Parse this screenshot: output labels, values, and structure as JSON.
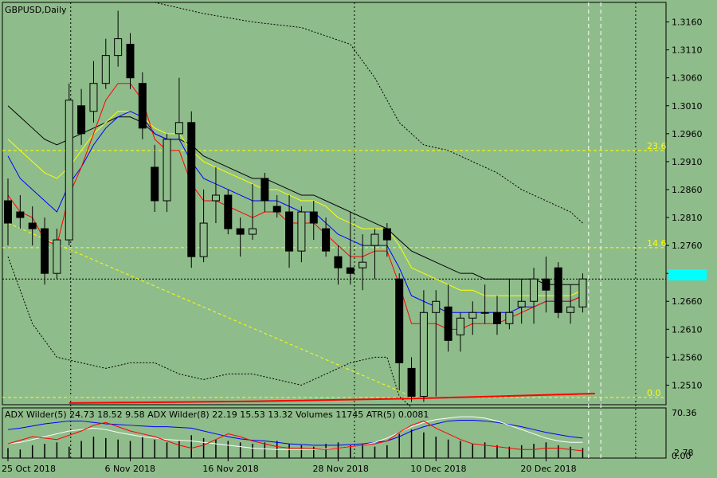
{
  "symbol_label": "GBPUSD,Daily",
  "indicator_label": "ADX Wilder(5) 24.73 18.52 9.58 ADX Wilder(8) 22.19 15.53 13.32 Volumes 11745 ATR(5) 0.0081",
  "current_price": "1.2700",
  "colors": {
    "background": "#8fbc8b",
    "bull_body": "#8fbc8b",
    "bear_body": "#000000",
    "ma_red": "#ff0000",
    "ma_blue": "#0000ff",
    "ma_yellow": "#ffff00",
    "ma_black": "#000000",
    "fib_line": "#ffff00",
    "price_tag": "#00ffff"
  },
  "chart_data": {
    "type": "candlestick",
    "price_axis": {
      "min": 1.2475,
      "max": 1.3195,
      "ticks": [
        "1.3160",
        "1.3110",
        "1.3060",
        "1.3010",
        "1.2960",
        "1.2910",
        "1.2860",
        "1.2810",
        "1.2760",
        "1.2710",
        "1.2660",
        "1.2610",
        "1.2560",
        "1.2510"
      ]
    },
    "time_labels": [
      {
        "i": 0,
        "label": "25 Oct 2018"
      },
      {
        "i": 10,
        "label": "6 Nov 2018"
      },
      {
        "i": 18,
        "label": "16 Nov 2018"
      },
      {
        "i": 27,
        "label": "28 Nov 2018"
      },
      {
        "i": 35,
        "label": "10 Dec 2018"
      },
      {
        "i": 44,
        "label": "20 Dec 2018"
      }
    ],
    "fib_levels": [
      {
        "label": "23.6",
        "price": 1.293
      },
      {
        "label": "14.6",
        "price": 1.2756
      },
      {
        "label": "0.0",
        "price": 1.2488
      }
    ],
    "vertical_marks": [
      5,
      29,
      48,
      49
    ],
    "candles": [
      {
        "o": 1.284,
        "h": 1.288,
        "l": 1.276,
        "c": 1.28
      },
      {
        "o": 1.282,
        "h": 1.285,
        "l": 1.279,
        "c": 1.281
      },
      {
        "o": 1.28,
        "h": 1.283,
        "l": 1.276,
        "c": 1.279
      },
      {
        "o": 1.279,
        "h": 1.281,
        "l": 1.269,
        "c": 1.271
      },
      {
        "o": 1.271,
        "h": 1.279,
        "l": 1.27,
        "c": 1.277
      },
      {
        "o": 1.277,
        "h": 1.305,
        "l": 1.276,
        "c": 1.302
      },
      {
        "o": 1.301,
        "h": 1.304,
        "l": 1.294,
        "c": 1.296
      },
      {
        "o": 1.3,
        "h": 1.309,
        "l": 1.298,
        "c": 1.305
      },
      {
        "o": 1.305,
        "h": 1.313,
        "l": 1.304,
        "c": 1.31
      },
      {
        "o": 1.31,
        "h": 1.318,
        "l": 1.308,
        "c": 1.313
      },
      {
        "o": 1.312,
        "h": 1.314,
        "l": 1.304,
        "c": 1.306
      },
      {
        "o": 1.305,
        "h": 1.307,
        "l": 1.295,
        "c": 1.297
      },
      {
        "o": 1.29,
        "h": 1.294,
        "l": 1.282,
        "c": 1.284
      },
      {
        "o": 1.284,
        "h": 1.296,
        "l": 1.282,
        "c": 1.295
      },
      {
        "o": 1.296,
        "h": 1.306,
        "l": 1.295,
        "c": 1.298
      },
      {
        "o": 1.298,
        "h": 1.3,
        "l": 1.272,
        "c": 1.274
      },
      {
        "o": 1.274,
        "h": 1.286,
        "l": 1.273,
        "c": 1.28
      },
      {
        "o": 1.284,
        "h": 1.29,
        "l": 1.28,
        "c": 1.285
      },
      {
        "o": 1.285,
        "h": 1.286,
        "l": 1.278,
        "c": 1.279
      },
      {
        "o": 1.279,
        "h": 1.281,
        "l": 1.274,
        "c": 1.278
      },
      {
        "o": 1.278,
        "h": 1.287,
        "l": 1.277,
        "c": 1.279
      },
      {
        "o": 1.288,
        "h": 1.289,
        "l": 1.282,
        "c": 1.284
      },
      {
        "o": 1.283,
        "h": 1.285,
        "l": 1.281,
        "c": 1.282
      },
      {
        "o": 1.282,
        "h": 1.285,
        "l": 1.272,
        "c": 1.275
      },
      {
        "o": 1.275,
        "h": 1.283,
        "l": 1.273,
        "c": 1.282
      },
      {
        "o": 1.282,
        "h": 1.284,
        "l": 1.277,
        "c": 1.28
      },
      {
        "o": 1.279,
        "h": 1.281,
        "l": 1.274,
        "c": 1.275
      },
      {
        "o": 1.274,
        "h": 1.276,
        "l": 1.269,
        "c": 1.272
      },
      {
        "o": 1.272,
        "h": 1.282,
        "l": 1.269,
        "c": 1.271
      },
      {
        "o": 1.272,
        "h": 1.278,
        "l": 1.268,
        "c": 1.273
      },
      {
        "o": 1.276,
        "h": 1.279,
        "l": 1.27,
        "c": 1.278
      },
      {
        "o": 1.279,
        "h": 1.28,
        "l": 1.274,
        "c": 1.277
      },
      {
        "o": 1.27,
        "h": 1.271,
        "l": 1.25,
        "c": 1.255
      },
      {
        "o": 1.254,
        "h": 1.256,
        "l": 1.248,
        "c": 1.249
      },
      {
        "o": 1.249,
        "h": 1.268,
        "l": 1.248,
        "c": 1.264
      },
      {
        "o": 1.264,
        "h": 1.268,
        "l": 1.249,
        "c": 1.266
      },
      {
        "o": 1.265,
        "h": 1.269,
        "l": 1.257,
        "c": 1.259
      },
      {
        "o": 1.26,
        "h": 1.264,
        "l": 1.257,
        "c": 1.263
      },
      {
        "o": 1.263,
        "h": 1.266,
        "l": 1.26,
        "c": 1.264
      },
      {
        "o": 1.264,
        "h": 1.269,
        "l": 1.262,
        "c": 1.264
      },
      {
        "o": 1.264,
        "h": 1.267,
        "l": 1.26,
        "c": 1.262
      },
      {
        "o": 1.262,
        "h": 1.27,
        "l": 1.261,
        "c": 1.264
      },
      {
        "o": 1.265,
        "h": 1.27,
        "l": 1.262,
        "c": 1.266
      },
      {
        "o": 1.266,
        "h": 1.272,
        "l": 1.262,
        "c": 1.27
      },
      {
        "o": 1.27,
        "h": 1.274,
        "l": 1.264,
        "c": 1.268
      },
      {
        "o": 1.272,
        "h": 1.273,
        "l": 1.263,
        "c": 1.264
      },
      {
        "o": 1.264,
        "h": 1.269,
        "l": 1.262,
        "c": 1.265
      },
      {
        "o": 1.265,
        "h": 1.271,
        "l": 1.264,
        "c": 1.27
      }
    ],
    "ma_red": [
      1.285,
      1.282,
      1.281,
      1.277,
      1.276,
      1.285,
      1.29,
      1.296,
      1.302,
      1.305,
      1.305,
      1.302,
      1.295,
      1.293,
      1.293,
      1.287,
      1.284,
      1.284,
      1.283,
      1.282,
      1.281,
      1.282,
      1.282,
      1.28,
      1.28,
      1.28,
      1.278,
      1.276,
      1.274,
      1.274,
      1.275,
      1.275,
      1.269,
      1.262,
      1.262,
      1.262,
      1.261,
      1.261,
      1.262,
      1.262,
      1.262,
      1.263,
      1.264,
      1.265,
      1.266,
      1.266,
      1.266,
      1.267
    ],
    "ma_blue": [
      1.292,
      1.288,
      1.286,
      1.284,
      1.282,
      1.287,
      1.29,
      1.294,
      1.297,
      1.299,
      1.3,
      1.299,
      1.296,
      1.295,
      1.295,
      1.291,
      1.288,
      1.287,
      1.286,
      1.285,
      1.284,
      1.284,
      1.284,
      1.283,
      1.282,
      1.282,
      1.28,
      1.278,
      1.277,
      1.276,
      1.276,
      1.276,
      1.272,
      1.267,
      1.266,
      1.265,
      1.264,
      1.264,
      1.264,
      1.264,
      1.264,
      1.264,
      1.265,
      1.265,
      1.266,
      1.266,
      1.266,
      1.267
    ],
    "ma_yellow": [
      1.295,
      1.293,
      1.291,
      1.289,
      1.288,
      1.29,
      1.293,
      1.296,
      1.298,
      1.3,
      1.3,
      1.299,
      1.297,
      1.296,
      1.296,
      1.293,
      1.291,
      1.29,
      1.289,
      1.288,
      1.287,
      1.286,
      1.286,
      1.285,
      1.284,
      1.284,
      1.283,
      1.281,
      1.28,
      1.279,
      1.279,
      1.279,
      1.276,
      1.272,
      1.271,
      1.27,
      1.269,
      1.268,
      1.268,
      1.267,
      1.267,
      1.267,
      1.267,
      1.267,
      1.267,
      1.267,
      1.267,
      1.268
    ],
    "ma_black": [
      1.301,
      1.299,
      1.297,
      1.295,
      1.294,
      1.295,
      1.296,
      1.297,
      1.298,
      1.299,
      1.299,
      1.298,
      1.296,
      1.295,
      1.295,
      1.294,
      1.292,
      1.291,
      1.29,
      1.289,
      1.288,
      1.288,
      1.287,
      1.286,
      1.285,
      1.285,
      1.284,
      1.283,
      1.282,
      1.281,
      1.28,
      1.279,
      1.277,
      1.275,
      1.274,
      1.273,
      1.272,
      1.271,
      1.271,
      1.27,
      1.27,
      1.27,
      1.27,
      1.27,
      1.269,
      1.269,
      1.269,
      1.269
    ],
    "band_upper": [
      [
        12,
        1.3195
      ],
      [
        16,
        1.3175
      ],
      [
        20,
        1.316
      ],
      [
        24,
        1.315
      ],
      [
        28,
        1.312
      ],
      [
        30,
        1.306
      ],
      [
        32,
        1.298
      ],
      [
        34,
        1.294
      ],
      [
        36,
        1.293
      ],
      [
        38,
        1.291
      ],
      [
        40,
        1.289
      ],
      [
        42,
        1.286
      ],
      [
        44,
        1.284
      ],
      [
        46,
        1.282
      ],
      [
        47,
        1.28
      ]
    ],
    "band_lower": [
      [
        0,
        1.274
      ],
      [
        2,
        1.262
      ],
      [
        4,
        1.256
      ],
      [
        6,
        1.255
      ],
      [
        8,
        1.254
      ],
      [
        10,
        1.255
      ],
      [
        12,
        1.255
      ],
      [
        14,
        1.253
      ],
      [
        16,
        1.252
      ],
      [
        18,
        1.253
      ],
      [
        20,
        1.253
      ],
      [
        22,
        1.252
      ],
      [
        24,
        1.251
      ],
      [
        26,
        1.253
      ],
      [
        28,
        1.255
      ],
      [
        30,
        1.256
      ],
      [
        31,
        1.256
      ],
      [
        32,
        1.249
      ],
      [
        33,
        1.247
      ]
    ],
    "trend_line": [
      [
        0,
        1.28
      ],
      [
        33,
        1.249
      ]
    ],
    "red_baseline": [
      [
        5,
        1.2478
      ],
      [
        20,
        1.2481
      ],
      [
        33,
        1.2486
      ],
      [
        40,
        1.249
      ],
      [
        48,
        1.2495
      ]
    ],
    "indicator_axis": {
      "max_label": "70.36",
      "min_label": "0.00",
      "mid_label": "2.78"
    },
    "volumes": [
      14,
      12,
      18,
      20,
      22,
      16,
      24,
      30,
      28,
      26,
      24,
      30,
      26,
      22,
      24,
      32,
      28,
      26,
      24,
      22,
      20,
      22,
      24,
      20,
      18,
      16,
      20,
      22,
      18,
      20,
      16,
      18,
      34,
      40,
      36,
      30,
      26,
      24,
      20,
      22,
      18,
      16,
      18,
      20,
      22,
      18,
      16,
      14
    ],
    "adx_blue": [
      40,
      42,
      45,
      48,
      50,
      52,
      52,
      50,
      48,
      47,
      46,
      45,
      44,
      44,
      43,
      42,
      38,
      34,
      30,
      27,
      25,
      24,
      22,
      20,
      19,
      18,
      18,
      18,
      19,
      20,
      22,
      24,
      30,
      38,
      44,
      48,
      52,
      53,
      53,
      52,
      50,
      47,
      44,
      40,
      36,
      33,
      30,
      28
    ],
    "adx_white": [
      20,
      22,
      26,
      30,
      34,
      38,
      40,
      42,
      40,
      36,
      33,
      30,
      28,
      26,
      25,
      24,
      22,
      20,
      18,
      16,
      14,
      13,
      12,
      12,
      12,
      12,
      13,
      14,
      16,
      18,
      22,
      28,
      36,
      44,
      50,
      54,
      56,
      58,
      58,
      56,
      52,
      46,
      40,
      34,
      28,
      24,
      22,
      22
    ],
    "adx_red": [
      20,
      25,
      30,
      28,
      26,
      32,
      38,
      46,
      50,
      44,
      38,
      34,
      30,
      24,
      18,
      14,
      18,
      26,
      34,
      30,
      24,
      20,
      16,
      14,
      14,
      13,
      12,
      14,
      16,
      18,
      20,
      24,
      36,
      46,
      52,
      42,
      34,
      26,
      20,
      18,
      16,
      14,
      12,
      12,
      14,
      14,
      12,
      10
    ]
  }
}
